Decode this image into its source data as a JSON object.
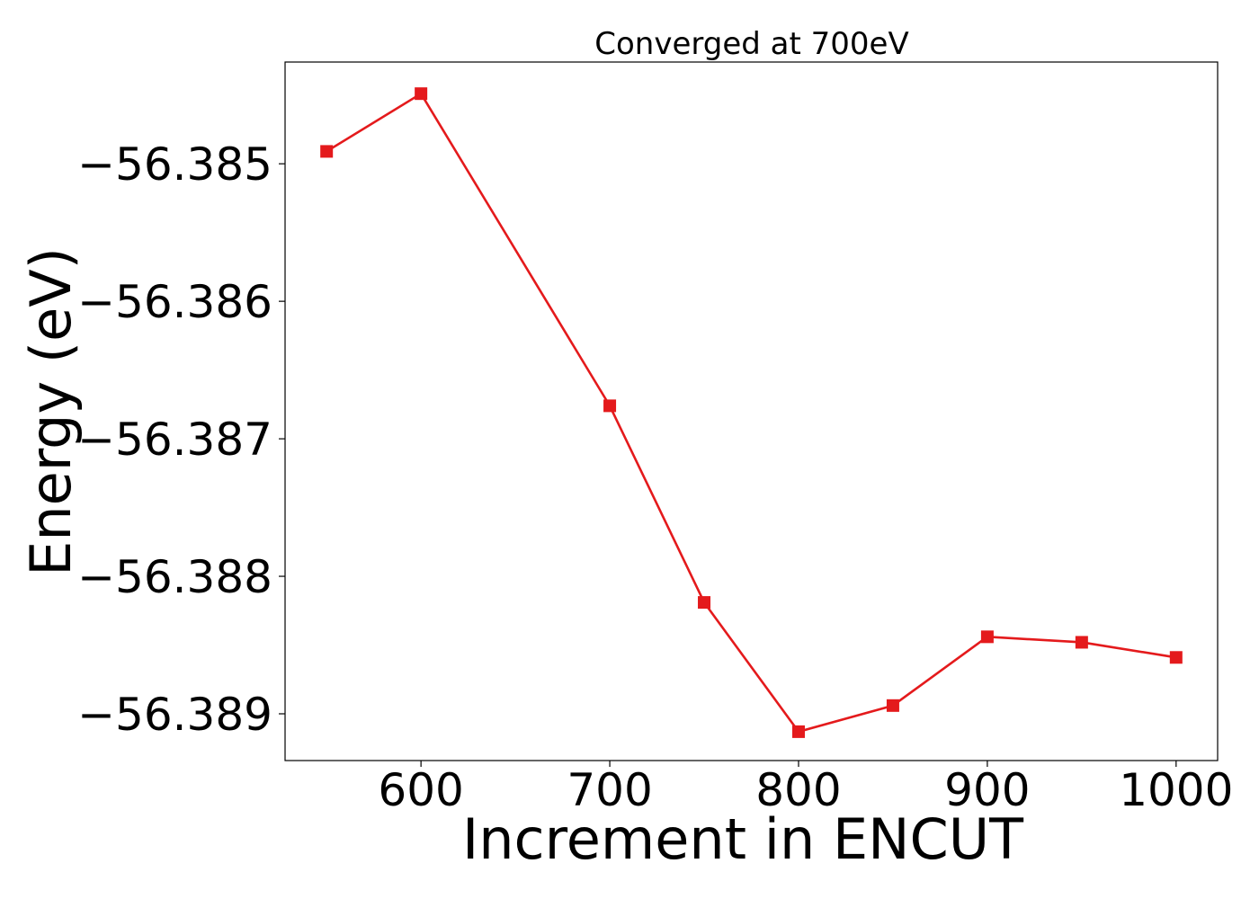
{
  "chart_data": {
    "type": "line",
    "title": "Converged at 700eV",
    "xlabel": "Increment in ENCUT",
    "ylabel": "Energy (eV)",
    "x": [
      550,
      600,
      700,
      750,
      800,
      850,
      900,
      950,
      1000
    ],
    "series": [
      {
        "values": [
          -56.38491,
          -56.38449,
          -56.38676,
          -56.38819,
          -56.38913,
          -56.38894,
          -56.38844,
          -56.38848,
          -56.38859
        ],
        "color": "#e41a1c",
        "marker": "square"
      }
    ],
    "xlim": [
      528,
      1022
    ],
    "ylim": [
      -56.38934,
      -56.38426
    ],
    "xticks": [
      600,
      700,
      800,
      900,
      1000
    ],
    "xtick_labels": [
      "600",
      "700",
      "800",
      "900",
      "1000"
    ],
    "yticks": [
      -56.385,
      -56.386,
      -56.387,
      -56.388,
      -56.389
    ],
    "ytick_labels": [
      "−56.385",
      "−56.386",
      "−56.387",
      "−56.388",
      "−56.389"
    ],
    "grid": false,
    "legend": "none"
  }
}
